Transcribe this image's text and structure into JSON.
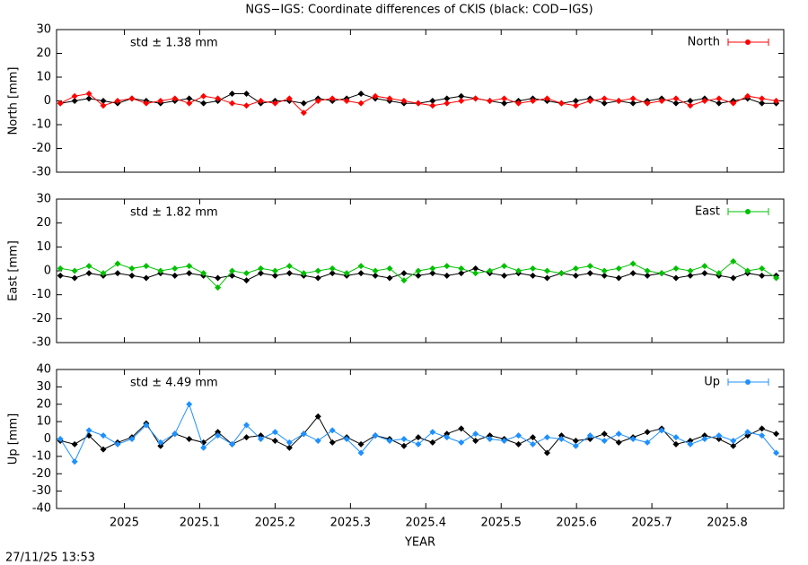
{
  "title": "NGS−IGS: Coordinate differences of CKIS (black: COD−IGS)",
  "footer": "27/11/25 13:53",
  "chart_data": [
    {
      "type": "line",
      "ylabel": "North [mm]",
      "annotation": "std ± 1.38 mm",
      "legend": "upper right",
      "xlim": [
        2024.91,
        2025.875
      ],
      "ylim": [
        -30,
        30
      ],
      "yticks": [
        -30,
        -20,
        -10,
        0,
        10,
        20,
        30
      ],
      "x": [
        2024.915,
        2024.934,
        2024.953,
        2024.972,
        2024.991,
        2025.01,
        2025.029,
        2025.048,
        2025.067,
        2025.086,
        2025.105,
        2025.124,
        2025.143,
        2025.162,
        2025.181,
        2025.2,
        2025.219,
        2025.238,
        2025.257,
        2025.276,
        2025.295,
        2025.314,
        2025.333,
        2025.352,
        2025.371,
        2025.39,
        2025.409,
        2025.428,
        2025.447,
        2025.466,
        2025.485,
        2025.504,
        2025.523,
        2025.542,
        2025.561,
        2025.58,
        2025.599,
        2025.618,
        2025.637,
        2025.656,
        2025.675,
        2025.694,
        2025.713,
        2025.732,
        2025.751,
        2025.77,
        2025.789,
        2025.808,
        2025.827,
        2025.846,
        2025.865
      ],
      "series": [
        {
          "color": "#000000",
          "values": [
            -1,
            0,
            1,
            0,
            -1,
            1,
            0,
            -1,
            0,
            1,
            -1,
            0,
            3,
            3,
            -1,
            0,
            0,
            -1,
            1,
            0,
            1,
            3,
            1,
            0,
            -1,
            -1,
            0,
            1,
            2,
            1,
            0,
            -1,
            0,
            1,
            0,
            -1,
            0,
            1,
            -1,
            0,
            -1,
            0,
            1,
            -1,
            0,
            1,
            -1,
            0,
            1,
            -1,
            -1
          ]
        },
        {
          "name": "North",
          "color": "#ff0000",
          "values": [
            -1,
            2,
            3,
            -2,
            0,
            1,
            -1,
            0,
            1,
            -1,
            2,
            1,
            -1,
            -2,
            0,
            -1,
            1,
            -5,
            0,
            1,
            0,
            -1,
            2,
            1,
            0,
            -1,
            -2,
            -1,
            0,
            1,
            0,
            1,
            -1,
            0,
            1,
            -1,
            -2,
            0,
            1,
            0,
            1,
            -1,
            0,
            1,
            -2,
            0,
            1,
            -1,
            2,
            1,
            0
          ]
        }
      ]
    },
    {
      "type": "line",
      "ylabel": "East [mm]",
      "annotation": "std ± 1.82 mm",
      "legend": "upper right",
      "xlim": [
        2024.91,
        2025.875
      ],
      "ylim": [
        -30,
        30
      ],
      "yticks": [
        -30,
        -20,
        -10,
        0,
        10,
        20,
        30
      ],
      "x": [
        2024.915,
        2024.934,
        2024.953,
        2024.972,
        2024.991,
        2025.01,
        2025.029,
        2025.048,
        2025.067,
        2025.086,
        2025.105,
        2025.124,
        2025.143,
        2025.162,
        2025.181,
        2025.2,
        2025.219,
        2025.238,
        2025.257,
        2025.276,
        2025.295,
        2025.314,
        2025.333,
        2025.352,
        2025.371,
        2025.39,
        2025.409,
        2025.428,
        2025.447,
        2025.466,
        2025.485,
        2025.504,
        2025.523,
        2025.542,
        2025.561,
        2025.58,
        2025.599,
        2025.618,
        2025.637,
        2025.656,
        2025.675,
        2025.694,
        2025.713,
        2025.732,
        2025.751,
        2025.77,
        2025.789,
        2025.808,
        2025.827,
        2025.846,
        2025.865
      ],
      "series": [
        {
          "color": "#000000",
          "values": [
            -2,
            -3,
            -1,
            -2,
            -1,
            -2,
            -3,
            -1,
            -2,
            -1,
            -2,
            -3,
            -2,
            -4,
            -1,
            -2,
            -1,
            -2,
            -3,
            -1,
            -2,
            -1,
            -2,
            -3,
            -1,
            -2,
            -1,
            -2,
            -1,
            1,
            -1,
            -2,
            -1,
            -2,
            -3,
            -1,
            -2,
            -1,
            -2,
            -3,
            -1,
            -2,
            -1,
            -3,
            -2,
            -1,
            -2,
            -3,
            -1,
            -2,
            -2
          ]
        },
        {
          "name": "East",
          "color": "#00c000",
          "values": [
            1,
            0,
            2,
            -1,
            3,
            1,
            2,
            0,
            1,
            2,
            -1,
            -7,
            0,
            -1,
            1,
            0,
            2,
            -1,
            0,
            1,
            -1,
            2,
            0,
            1,
            -4,
            0,
            1,
            2,
            1,
            -1,
            0,
            2,
            0,
            1,
            0,
            -1,
            1,
            2,
            0,
            1,
            3,
            0,
            -1,
            1,
            0,
            2,
            -1,
            4,
            0,
            1,
            -3
          ]
        }
      ]
    },
    {
      "type": "line",
      "ylabel": "Up [mm]",
      "annotation": "std ± 4.49 mm",
      "legend": "upper right",
      "xlabel": "YEAR",
      "xlim": [
        2024.91,
        2025.875
      ],
      "xticks": [
        2025,
        2025.1,
        2025.2,
        2025.3,
        2025.4,
        2025.5,
        2025.6,
        2025.7,
        2025.8
      ],
      "ylim": [
        -40,
        40
      ],
      "yticks": [
        -40,
        -30,
        -20,
        -10,
        0,
        10,
        20,
        30,
        40
      ],
      "x": [
        2024.915,
        2024.934,
        2024.953,
        2024.972,
        2024.991,
        2025.01,
        2025.029,
        2025.048,
        2025.067,
        2025.086,
        2025.105,
        2025.124,
        2025.143,
        2025.162,
        2025.181,
        2025.2,
        2025.219,
        2025.238,
        2025.257,
        2025.276,
        2025.295,
        2025.314,
        2025.333,
        2025.352,
        2025.371,
        2025.39,
        2025.409,
        2025.428,
        2025.447,
        2025.466,
        2025.485,
        2025.504,
        2025.523,
        2025.542,
        2025.561,
        2025.58,
        2025.599,
        2025.618,
        2025.637,
        2025.656,
        2025.675,
        2025.694,
        2025.713,
        2025.732,
        2025.751,
        2025.77,
        2025.789,
        2025.808,
        2025.827,
        2025.846,
        2025.865
      ],
      "series": [
        {
          "color": "#000000",
          "values": [
            -1,
            -3,
            2,
            -6,
            -2,
            1,
            9,
            -4,
            3,
            0,
            -2,
            4,
            -3,
            1,
            2,
            -1,
            -5,
            3,
            13,
            -2,
            1,
            -3,
            2,
            0,
            -4,
            1,
            -2,
            3,
            6,
            -1,
            2,
            0,
            -3,
            1,
            -8,
            2,
            -1,
            0,
            3,
            -2,
            1,
            4,
            6,
            -3,
            -1,
            2,
            0,
            -4,
            2,
            6,
            3
          ]
        },
        {
          "name": "Up",
          "color": "#1e90ff",
          "values": [
            0,
            -13,
            5,
            2,
            -3,
            0,
            8,
            -2,
            3,
            20,
            -5,
            2,
            -3,
            8,
            0,
            4,
            -2,
            3,
            -1,
            5,
            0,
            -8,
            2,
            -1,
            0,
            -3,
            4,
            1,
            -2,
            3,
            0,
            -1,
            2,
            -3,
            1,
            0,
            -4,
            2,
            -1,
            3,
            0,
            -2,
            5,
            1,
            -3,
            0,
            2,
            -1,
            4,
            2,
            -8
          ]
        }
      ]
    }
  ]
}
